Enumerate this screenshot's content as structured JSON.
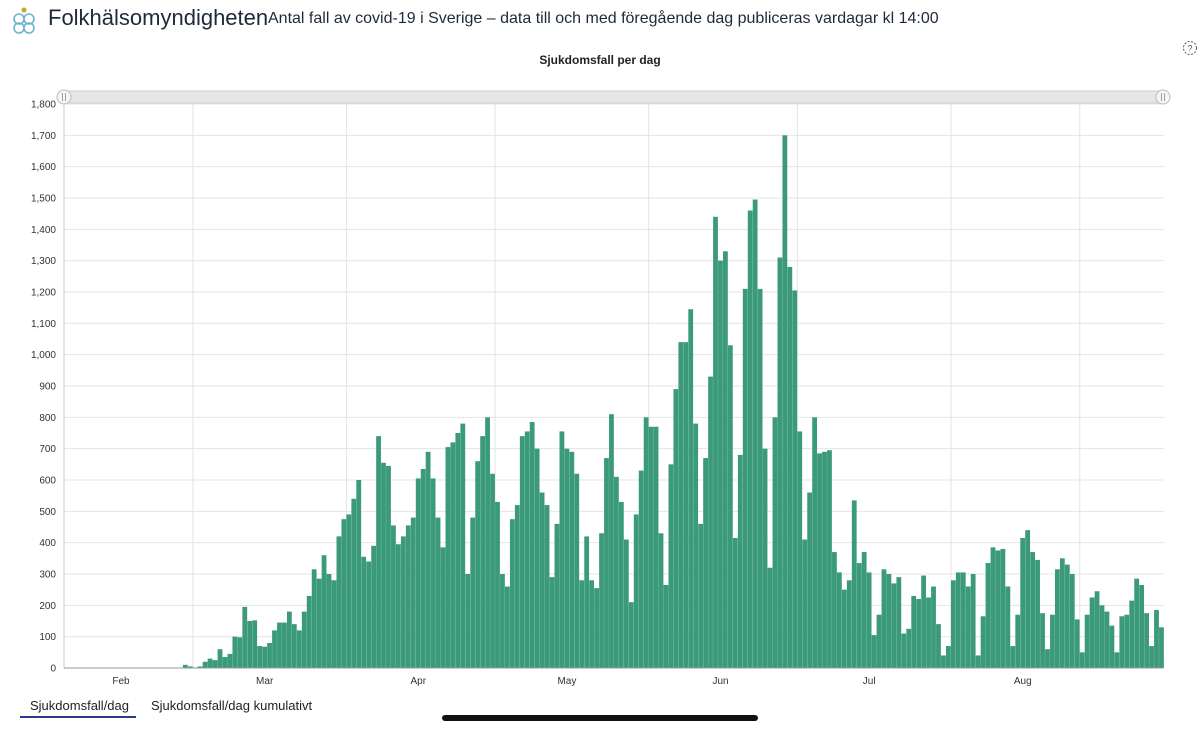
{
  "header": {
    "brand": "Folkhälsomyndigheten",
    "subtitle": "Antal fall av covid-19 i Sverige – data till och med föregående dag publiceras vardagar kl 14:00"
  },
  "chart_title": "Sjukdomsfall per dag",
  "tabs": [
    {
      "label": "Sjukdomsfall/dag",
      "active": true
    },
    {
      "label": "Sjukdomsfall/dag kumulativt",
      "active": false
    }
  ],
  "colors": {
    "bar": "#3a9a7a",
    "grid": "#e4e4e4",
    "tab_underline": "#2b3a8c"
  },
  "chart_data": {
    "type": "bar",
    "title": "Sjukdomsfall per dag",
    "xlabel": "",
    "ylabel": "",
    "ylim": [
      0,
      1800
    ],
    "yticks": [
      0,
      100,
      200,
      300,
      400,
      500,
      600,
      700,
      800,
      900,
      1000,
      1100,
      1200,
      1300,
      1400,
      1500,
      1600,
      1700,
      1800
    ],
    "ytick_labels": [
      "0",
      "100",
      "200",
      "300",
      "400",
      "500",
      "600",
      "700",
      "800",
      "900",
      "1,000",
      "1,100",
      "1,200",
      "1,300",
      "1,400",
      "1,500",
      "1,600",
      "1,700",
      "1,800"
    ],
    "x_start": "2020-02-04",
    "month_labels": [
      {
        "label": "Feb",
        "date": "2020-02-15"
      },
      {
        "label": "Mar",
        "date": "2020-03-15"
      },
      {
        "label": "Apr",
        "date": "2020-04-15"
      },
      {
        "label": "May",
        "date": "2020-05-15"
      },
      {
        "label": "Jun",
        "date": "2020-06-15"
      },
      {
        "label": "Jul",
        "date": "2020-07-15"
      },
      {
        "label": "Aug",
        "date": "2020-08-15"
      }
    ],
    "grid": true,
    "values": [
      1,
      0,
      0,
      0,
      0,
      0,
      0,
      0,
      0,
      0,
      0,
      0,
      0,
      0,
      0,
      0,
      0,
      0,
      0,
      0,
      0,
      0,
      0,
      0,
      10,
      5,
      2,
      5,
      20,
      30,
      25,
      60,
      35,
      45,
      100,
      98,
      195,
      150,
      152,
      70,
      68,
      80,
      120,
      145,
      145,
      180,
      140,
      120,
      180,
      230,
      315,
      285,
      360,
      300,
      280,
      420,
      475,
      490,
      540,
      600,
      355,
      340,
      390,
      740,
      655,
      645,
      455,
      395,
      420,
      455,
      480,
      605,
      635,
      690,
      605,
      480,
      385,
      705,
      720,
      750,
      780,
      300,
      480,
      660,
      740,
      800,
      620,
      530,
      300,
      260,
      475,
      520,
      740,
      755,
      785,
      700,
      560,
      520,
      290,
      460,
      755,
      700,
      690,
      620,
      280,
      420,
      280,
      255,
      430,
      670,
      810,
      610,
      530,
      410,
      210,
      490,
      630,
      800,
      770,
      770,
      430,
      265,
      650,
      890,
      1040,
      1040,
      1145,
      780,
      460,
      670,
      930,
      1440,
      1300,
      1330,
      1030,
      415,
      680,
      1210,
      1460,
      1495,
      1210,
      700,
      320,
      800,
      1310,
      1700,
      1280,
      1205,
      755,
      410,
      560,
      800,
      685,
      690,
      695,
      370,
      305,
      250,
      280,
      535,
      335,
      370,
      305,
      105,
      170,
      315,
      300,
      270,
      290,
      110,
      125,
      230,
      220,
      295,
      225,
      260,
      140,
      40,
      70,
      280,
      305,
      305,
      260,
      300,
      40,
      165,
      335,
      385,
      375,
      380,
      260,
      70,
      170,
      415,
      440,
      370,
      345,
      175,
      60,
      170,
      315,
      350,
      330,
      300,
      155,
      50,
      170,
      225,
      245,
      200,
      180,
      135,
      50,
      165,
      170,
      215,
      285,
      265,
      175,
      70,
      185,
      130
    ]
  }
}
